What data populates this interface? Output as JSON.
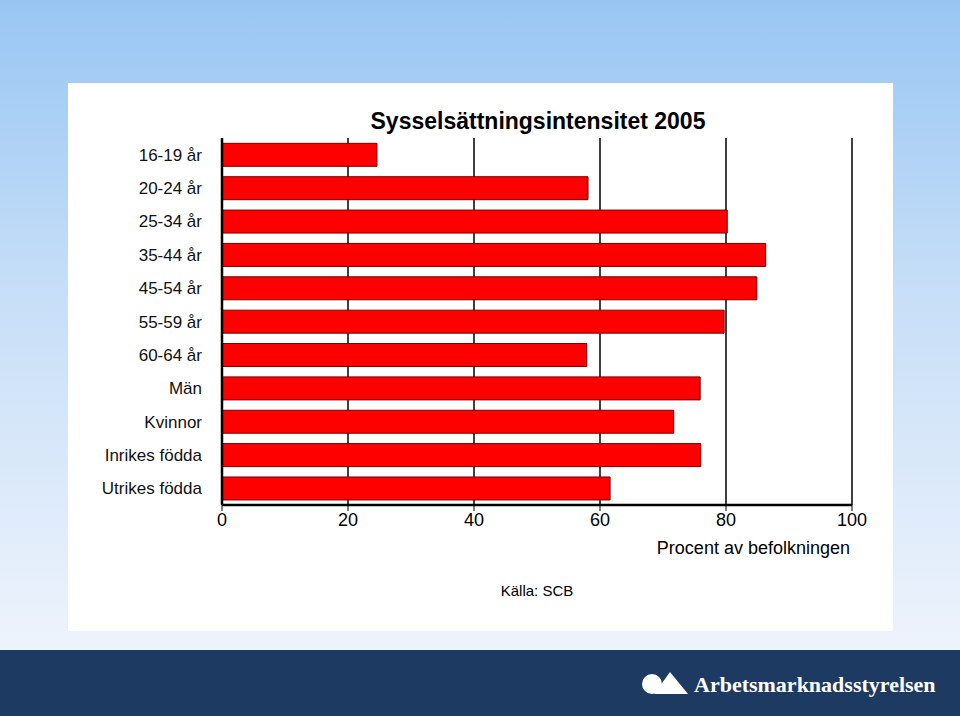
{
  "chart_data": {
    "type": "bar",
    "orientation": "horizontal",
    "title": "Sysselsättningsintensitet 2005",
    "x_label": "Procent av befolkningen",
    "source": "Källa: SCB",
    "footer": "Arbetsmarknadsstyrelsen",
    "categories": [
      "16-19 år",
      "20-24 år",
      "25-34 år",
      "35-44 år",
      "45-54 år",
      "55-59 år",
      "60-64 år",
      "Män",
      "Kvinnor",
      "Inrikes födda",
      "Utrikes födda"
    ],
    "values": [
      24.6,
      58.1,
      80.2,
      86.3,
      84.9,
      79.7,
      57.9,
      75.9,
      71.7,
      76.0,
      61.6
    ],
    "color": "#ff0000",
    "xlim": [
      0,
      100
    ],
    "xticks": [
      0,
      20,
      40,
      60,
      80,
      100
    ],
    "grid": true
  }
}
